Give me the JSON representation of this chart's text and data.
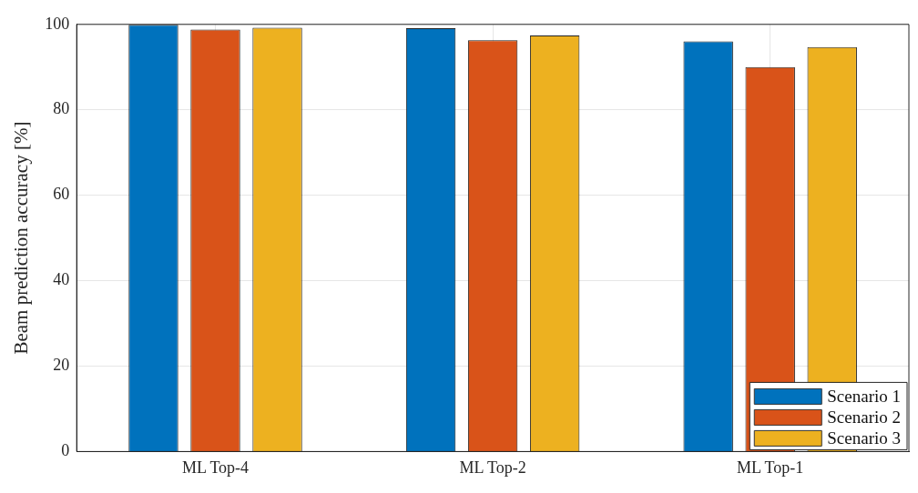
{
  "chart_data": {
    "type": "bar",
    "ylabel": "Beam prediction accuracy [%]",
    "categories": [
      "ML Top-4",
      "ML Top-2",
      "ML Top-1"
    ],
    "series": [
      {
        "name": "Scenario 1",
        "color": "#0072bd",
        "values": [
          99.9,
          99.1,
          96.0
        ]
      },
      {
        "name": "Scenario 2",
        "color": "#d95319",
        "values": [
          98.8,
          96.3,
          90.0
        ]
      },
      {
        "name": "Scenario 3",
        "color": "#edb120",
        "values": [
          99.2,
          97.4,
          94.7
        ]
      }
    ],
    "ylim": [
      0,
      100
    ],
    "yticks": [
      0,
      20,
      40,
      60,
      80,
      100
    ],
    "grid": true,
    "legend": "bottom right"
  }
}
